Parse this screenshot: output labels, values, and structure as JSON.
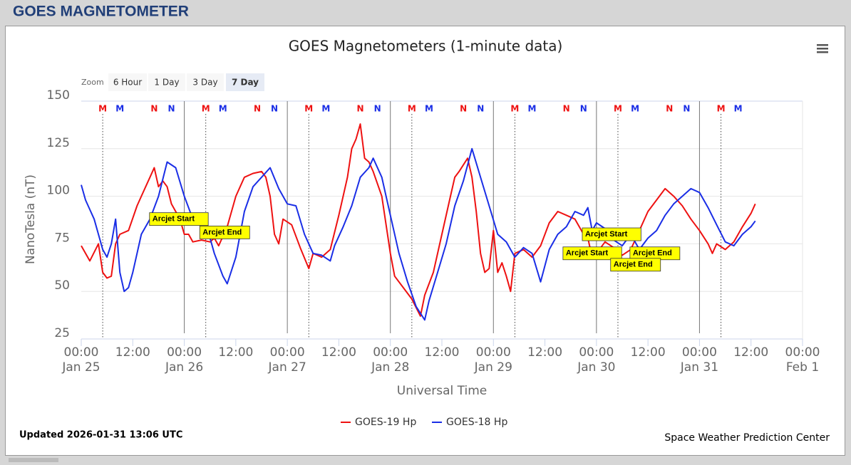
{
  "header": {
    "title": "GOES MAGNETOMETER"
  },
  "zoom": {
    "label": "Zoom",
    "buttons": [
      "6 Hour",
      "1 Day",
      "3 Day",
      "7 Day"
    ],
    "selected": 3
  },
  "chart_data": {
    "type": "line",
    "title": "GOES Magnetometers (1-minute data)",
    "x_label": "Universal Time",
    "y_label": "NanoTesla (nT)",
    "xlim": [
      0,
      168
    ],
    "ylim": [
      25,
      150
    ],
    "yticks": [
      25,
      50,
      75,
      100,
      125,
      150
    ],
    "grid": true,
    "xticks": [
      {
        "value": 0,
        "label": "00:00",
        "date": "Jan 25"
      },
      {
        "value": 12,
        "label": "12:00"
      },
      {
        "value": 24,
        "label": "00:00",
        "date": "Jan 26"
      },
      {
        "value": 36,
        "label": "12:00"
      },
      {
        "value": 48,
        "label": "00:00",
        "date": "Jan 27"
      },
      {
        "value": 60,
        "label": "12:00"
      },
      {
        "value": 72,
        "label": "00:00",
        "date": "Jan 28"
      },
      {
        "value": 84,
        "label": "12:00"
      },
      {
        "value": 96,
        "label": "00:00",
        "date": "Jan 29"
      },
      {
        "value": 108,
        "label": "12:00"
      },
      {
        "value": 120,
        "label": "00:00",
        "date": "Jan 30"
      },
      {
        "value": 132,
        "label": "12:00"
      },
      {
        "value": 144,
        "label": "00:00",
        "date": "Jan 31"
      },
      {
        "value": 156,
        "label": "12:00"
      },
      {
        "value": 168,
        "label": "00:00",
        "date": "Feb 1"
      }
    ],
    "series": [
      {
        "name": "GOES-19 Hp",
        "color": "#ee1111",
        "x": [
          0,
          2,
          4,
          5,
          6,
          7,
          8,
          9,
          11,
          13,
          14,
          16,
          17,
          18,
          19,
          20,
          21,
          23,
          24,
          25,
          26,
          28,
          30,
          31,
          32,
          34,
          36,
          38,
          40,
          42,
          43,
          44,
          45,
          46,
          47,
          49,
          51,
          53,
          54,
          56,
          58,
          60,
          62,
          63,
          64,
          65,
          66,
          67,
          68,
          70,
          72,
          73,
          75,
          77,
          79,
          80,
          82,
          84,
          86,
          87,
          88,
          90,
          91,
          92,
          93,
          94,
          95,
          96,
          97,
          98,
          99,
          100,
          101,
          103,
          105,
          107,
          109,
          111,
          113,
          115,
          117,
          118,
          119,
          120,
          122,
          124,
          126,
          128,
          130,
          132,
          134,
          136,
          138,
          140,
          142,
          144,
          146,
          147,
          148,
          150,
          152,
          154,
          156,
          157
        ],
        "values": [
          74,
          66,
          75,
          60,
          57,
          58,
          75,
          80,
          82,
          95,
          100,
          110,
          115,
          105,
          108,
          105,
          96,
          88,
          80,
          80,
          76,
          77,
          76,
          78,
          74,
          84,
          100,
          110,
          112,
          113,
          110,
          100,
          80,
          75,
          88,
          85,
          73,
          62,
          70,
          68,
          72,
          90,
          110,
          125,
          130,
          138,
          120,
          118,
          113,
          100,
          70,
          58,
          52,
          46,
          37,
          48,
          60,
          80,
          100,
          110,
          113,
          120,
          110,
          92,
          70,
          60,
          62,
          82,
          60,
          65,
          58,
          50,
          70,
          72,
          68,
          74,
          86,
          92,
          90,
          88,
          80,
          78,
          68,
          70,
          76,
          73,
          69,
          72,
          82,
          92,
          98,
          104,
          100,
          95,
          88,
          82,
          75,
          70,
          75,
          72,
          76,
          84,
          91,
          96
        ]
      },
      {
        "name": "GOES-18 Hp",
        "color": "#1a2ee6",
        "x": [
          0,
          1,
          3,
          4,
          5,
          6,
          7,
          8,
          9,
          10,
          11,
          12,
          13,
          14,
          16,
          18,
          20,
          22,
          24,
          26,
          28,
          30,
          31,
          33,
          34,
          36,
          38,
          40,
          42,
          44,
          46,
          48,
          50,
          52,
          54,
          56,
          58,
          59,
          61,
          63,
          65,
          67,
          68,
          70,
          72,
          74,
          76,
          78,
          80,
          81,
          83,
          85,
          87,
          89,
          91,
          93,
          95,
          97,
          99,
          101,
          103,
          105,
          107,
          109,
          111,
          113,
          115,
          117,
          118,
          119,
          120,
          122,
          124,
          126,
          128,
          130,
          132,
          134,
          136,
          138,
          140,
          142,
          144,
          146,
          148,
          150,
          152,
          154,
          156,
          157
        ],
        "values": [
          106,
          98,
          88,
          80,
          72,
          68,
          75,
          88,
          60,
          50,
          52,
          60,
          70,
          80,
          88,
          100,
          118,
          115,
          100,
          88,
          86,
          78,
          70,
          58,
          54,
          68,
          92,
          105,
          110,
          115,
          104,
          96,
          95,
          80,
          70,
          69,
          66,
          74,
          84,
          95,
          110,
          115,
          120,
          110,
          90,
          70,
          55,
          42,
          35,
          45,
          60,
          75,
          95,
          108,
          125,
          110,
          95,
          80,
          76,
          68,
          73,
          70,
          55,
          72,
          80,
          84,
          92,
          90,
          94,
          82,
          86,
          83,
          77,
          74,
          80,
          72,
          78,
          82,
          90,
          96,
          100,
          104,
          102,
          94,
          85,
          76,
          74,
          80,
          84,
          87
        ]
      }
    ],
    "markers": [
      {
        "label": "M",
        "color": "#ee1111",
        "x": [
          5,
          29,
          53,
          77,
          101,
          125,
          149
        ]
      },
      {
        "label": "M",
        "color": "#1a2ee6",
        "x": [
          9,
          33,
          57,
          81,
          105,
          129,
          153
        ]
      },
      {
        "label": "N",
        "color": "#ee1111",
        "x": [
          17,
          41,
          65,
          89,
          113,
          137
        ]
      },
      {
        "label": "N",
        "color": "#1a2ee6",
        "x": [
          21,
          45,
          69,
          93,
          117,
          141
        ]
      }
    ],
    "annotations": [
      {
        "label": "Arcjet Start",
        "x": 15.9,
        "y": 88
      },
      {
        "label": "Arcjet End",
        "x": 27.6,
        "y": 81
      },
      {
        "label": "Arcjet Start",
        "x": 116.7,
        "y": 80
      },
      {
        "label": "Arcjet End",
        "x": 127.8,
        "y": 70
      },
      {
        "label": "Arcjet Start",
        "x": 112.2,
        "y": 70
      },
      {
        "label": "Arcjet End",
        "x": 123.3,
        "y": 64
      }
    ]
  },
  "footer": {
    "updated": "Updated 2026-01-31 13:06 UTC",
    "credit": "Space Weather Prediction Center"
  }
}
